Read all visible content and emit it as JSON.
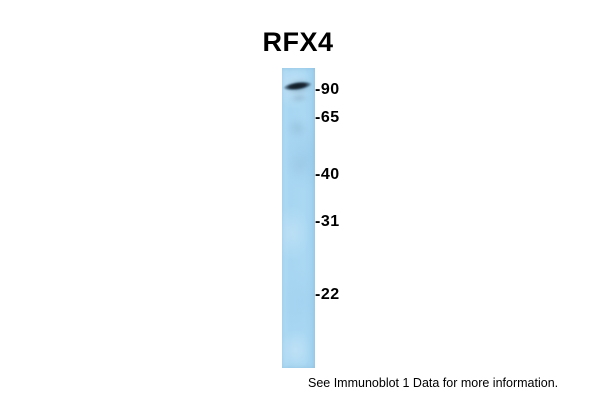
{
  "figure": {
    "title": "RFX4",
    "footer": "See Immunoblot 1 Data for more information."
  },
  "markers": [
    {
      "label": "-90",
      "kda": 90
    },
    {
      "label": "-65",
      "kda": 65
    },
    {
      "label": "-40",
      "kda": 40
    },
    {
      "label": "-31",
      "kda": 31
    },
    {
      "label": "-22",
      "kda": 22
    }
  ],
  "blot": {
    "band": {
      "approx_kda": 90,
      "description": "single dark band just above the 90 kDa marker"
    },
    "colors": {
      "lane": "#a9d6f1",
      "band": "#1b2733",
      "background": "#ffffff",
      "text": "#000000"
    }
  }
}
